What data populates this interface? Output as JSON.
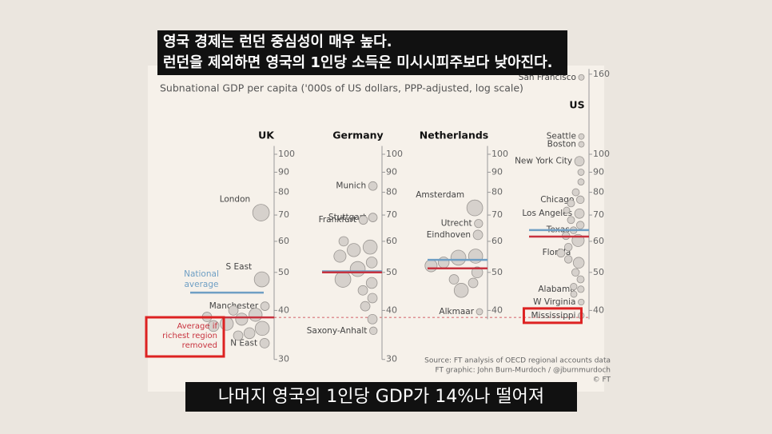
{
  "captions": {
    "top": [
      "영국 경제는 런던 중심성이 매우 높다.",
      "런던을 제외하면 영국의 1인당 소득은 미시시피주보다 낮아진다."
    ],
    "bottom": "나머지 영국의 1인당 GDP가 14%나 떨어져"
  },
  "figure": {
    "subtitle": "Subnational GDP per capita ('000s of US dollars, PPP-adjusted, log scale)",
    "national_label": "National average",
    "removed_label": "Average if richest region removed",
    "national_color": "#6f9fc4",
    "removed_color": "#c8333f",
    "source": [
      "Source: FT analysis of OECD regional accounts data",
      "FT graphic: John Burn-Murdoch / @jburnmurdoch",
      "© FT"
    ]
  },
  "chart_data": [
    {
      "type": "scatter",
      "title": "UK",
      "log": true,
      "ylim": [
        30,
        105
      ],
      "yticks": [
        30,
        40,
        50,
        60,
        70,
        80,
        90,
        100
      ],
      "national_average": 44.4,
      "average_excluding_richest": 38.4,
      "points": {
        "labels": [
          "London",
          "S East",
          "Manchester",
          "N East",
          null,
          null,
          null,
          null,
          null,
          null,
          null,
          null,
          null
        ],
        "values": [
          71,
          48,
          41,
          33,
          39,
          38,
          37,
          36,
          36.5,
          38.5,
          35,
          34.5,
          40
        ],
        "sizes": [
          9,
          7,
          1.5,
          2,
          5,
          4,
          5,
          6,
          3,
          2,
          3,
          2,
          2
        ]
      }
    },
    {
      "type": "scatter",
      "title": "Germany",
      "log": true,
      "ylim": [
        30,
        105
      ],
      "yticks": [
        30,
        40,
        50,
        60,
        70,
        80,
        90,
        100
      ],
      "national_average": 50.3,
      "average_excluding_richest": 50,
      "points": {
        "labels": [
          "Munich",
          "Stuttgart",
          "Frankfurt",
          "Saxony-Anhalt",
          null,
          null,
          null,
          null,
          null,
          null,
          null,
          null,
          null,
          null,
          null,
          null
        ],
        "values": [
          83,
          69,
          68,
          35.5,
          58,
          57,
          55,
          53,
          51,
          48,
          47,
          45,
          43,
          41,
          38,
          60
        ],
        "sizes": [
          1.5,
          1.5,
          1.5,
          1,
          6,
          5,
          4,
          3,
          7,
          8,
          3,
          2,
          2,
          2,
          2,
          2
        ]
      }
    },
    {
      "type": "scatter",
      "title": "Netherlands",
      "log": true,
      "ylim": [
        38,
        105
      ],
      "yticks": [
        40,
        50,
        60,
        70,
        80,
        90,
        100
      ],
      "national_average": 53.8,
      "average_excluding_richest": 51.2,
      "points": {
        "labels": [
          "Amsterdam",
          "Utrecht",
          "Eindhoven",
          "Alkmaar",
          null,
          null,
          null,
          null,
          null,
          null,
          null,
          null
        ],
        "values": [
          73,
          66.6,
          62.3,
          39.7,
          55,
          54.5,
          53,
          50,
          47,
          45,
          48,
          52
        ],
        "sizes": [
          8,
          1.3,
          2,
          0.5,
          6,
          7,
          3,
          3,
          2,
          6,
          2,
          4
        ]
      }
    },
    {
      "type": "scatter",
      "title": "US",
      "log": true,
      "ylim": [
        38,
        165
      ],
      "yticks": [
        40,
        50,
        60,
        70,
        80,
        90,
        100,
        160
      ],
      "national_average": 64.1,
      "average_excluding_richest": 61.7,
      "points": {
        "labels": [
          "San Francisco",
          "Seattle",
          "Boston",
          "New York City",
          "Chicago",
          "Los Angeles",
          "Texas",
          "Florida",
          "Alabama",
          "W Virginia",
          "Mississippi",
          null,
          null,
          null,
          null,
          null,
          null,
          null,
          null,
          null,
          null,
          null,
          null,
          null,
          null,
          null,
          null
        ],
        "values": [
          157,
          111,
          106,
          96,
          76.6,
          70.6,
          60.3,
          52.9,
          45.3,
          42,
          38.8,
          90,
          85,
          80,
          75,
          72,
          68,
          66,
          64,
          62,
          58,
          56,
          54,
          50,
          48,
          46,
          44
        ],
        "sizes": [
          0.3,
          0.3,
          0.3,
          2,
          1,
          2,
          4,
          3,
          0.6,
          0.4,
          0.4,
          0.5,
          0.5,
          0.8,
          0.8,
          0.5,
          0.8,
          1,
          0.7,
          1,
          1,
          1.2,
          1,
          1,
          0.8,
          0.6,
          0.5
        ]
      }
    }
  ]
}
